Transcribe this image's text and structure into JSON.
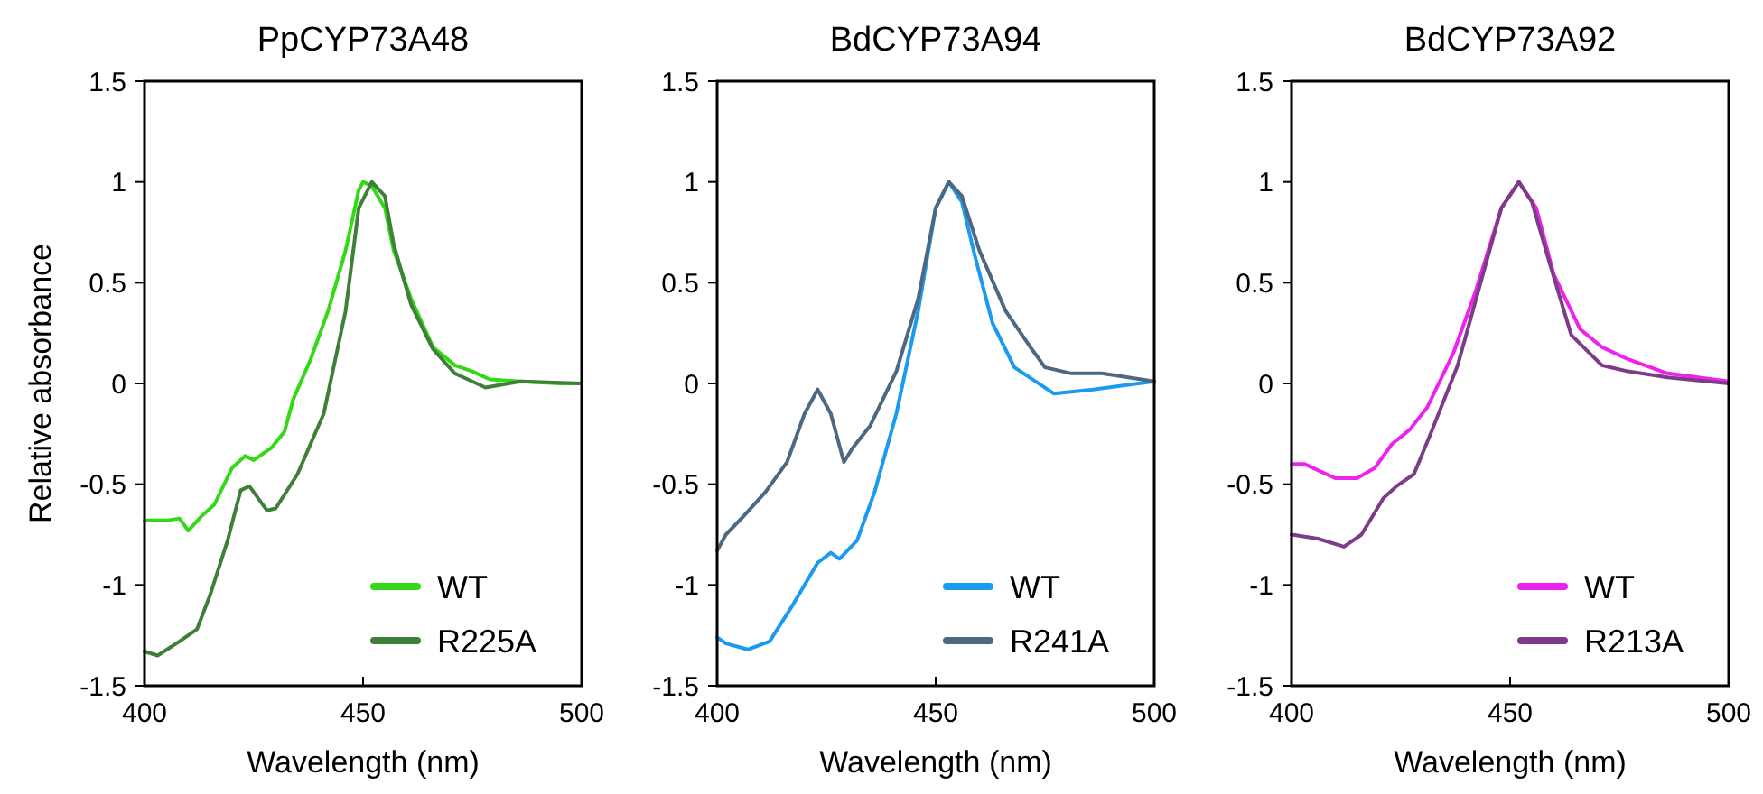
{
  "chart_data": [
    {
      "type": "line",
      "title": "PpCYP73A48",
      "xlabel": "Wavelength (nm)",
      "ylabel": "Relative absorbance",
      "xlim": [
        400,
        500
      ],
      "xticks": [
        400,
        450,
        500
      ],
      "ylim": [
        -1.5,
        1.5
      ],
      "yticks": [
        -1.5,
        -1,
        -0.5,
        0,
        0.5,
        1,
        1.5
      ],
      "legend": "bottom right",
      "grid": false,
      "marker": "none",
      "line_style": "solid",
      "series": [
        {
          "name": "WT",
          "color": "#33d916",
          "x": [
            400,
            405,
            408,
            410,
            413,
            416,
            420,
            423,
            425,
            429,
            432,
            434,
            438,
            442,
            446,
            449,
            450,
            452,
            455,
            457,
            461,
            466,
            471,
            475,
            479,
            486,
            495,
            500
          ],
          "values": [
            -0.68,
            -0.68,
            -0.67,
            -0.73,
            -0.66,
            -0.6,
            -0.42,
            -0.36,
            -0.38,
            -0.32,
            -0.24,
            -0.08,
            0.12,
            0.36,
            0.66,
            0.96,
            1,
            0.98,
            0.87,
            0.66,
            0.42,
            0.18,
            0.09,
            0.06,
            0.02,
            0.01,
            0,
            0
          ]
        },
        {
          "name": "R225A",
          "color": "#3f7f3a",
          "x": [
            400,
            403,
            408,
            412,
            415,
            419,
            422,
            424,
            428,
            430,
            435,
            441,
            446,
            449,
            452,
            455,
            457,
            461,
            466,
            471,
            478,
            486,
            500
          ],
          "values": [
            -1.33,
            -1.35,
            -1.28,
            -1.22,
            -1.05,
            -0.78,
            -0.53,
            -0.51,
            -0.63,
            -0.62,
            -0.45,
            -0.15,
            0.36,
            0.87,
            1,
            0.93,
            0.69,
            0.39,
            0.17,
            0.05,
            -0.02,
            0.01,
            0
          ]
        }
      ]
    },
    {
      "type": "line",
      "title": "BdCYP73A94",
      "xlabel": "Wavelength (nm)",
      "xlim": [
        400,
        500
      ],
      "xticks": [
        400,
        450,
        500
      ],
      "ylim": [
        -1.5,
        1.5
      ],
      "yticks": [
        -1.5,
        -1,
        -0.5,
        0,
        0.5,
        1,
        1.5
      ],
      "legend": "bottom right",
      "grid": false,
      "marker": "none",
      "line_style": "solid",
      "series": [
        {
          "name": "WT",
          "color": "#1a9bf0",
          "x": [
            400,
            402,
            407,
            412,
            417,
            423,
            426,
            428,
            432,
            436,
            441,
            446,
            450,
            453,
            456,
            459,
            463,
            468,
            477,
            486,
            500
          ],
          "values": [
            -1.26,
            -1.29,
            -1.32,
            -1.28,
            -1.11,
            -0.89,
            -0.84,
            -0.87,
            -0.78,
            -0.54,
            -0.15,
            0.36,
            0.87,
            1,
            0.9,
            0.63,
            0.3,
            0.08,
            -0.05,
            -0.03,
            0.01
          ]
        },
        {
          "name": "R241A",
          "color": "#4d6880",
          "x": [
            400,
            402,
            406,
            411,
            416,
            420,
            423,
            426,
            429,
            431,
            435,
            441,
            446,
            450,
            453,
            456,
            460,
            466,
            472,
            475,
            481,
            488,
            500
          ],
          "values": [
            -0.83,
            -0.75,
            -0.66,
            -0.54,
            -0.39,
            -0.15,
            -0.03,
            -0.15,
            -0.39,
            -0.32,
            -0.21,
            0.06,
            0.42,
            0.87,
            1,
            0.93,
            0.66,
            0.36,
            0.17,
            0.08,
            0.05,
            0.05,
            0.01
          ]
        }
      ]
    },
    {
      "type": "line",
      "title": "BdCYP73A92",
      "xlabel": "Wavelength (nm)",
      "xlim": [
        400,
        500
      ],
      "xticks": [
        400,
        450,
        500
      ],
      "ylim": [
        -1.5,
        1.5
      ],
      "yticks": [
        -1.5,
        -1,
        -0.5,
        0,
        0.5,
        1,
        1.5
      ],
      "legend": "bottom right",
      "grid": false,
      "marker": "none",
      "line_style": "solid",
      "series": [
        {
          "name": "WT",
          "color": "#ee22ee",
          "x": [
            400,
            403,
            410,
            415,
            419,
            423,
            427,
            431,
            437,
            442,
            448,
            452,
            456,
            460,
            466,
            471,
            477,
            486,
            500
          ],
          "values": [
            -0.4,
            -0.4,
            -0.47,
            -0.47,
            -0.42,
            -0.3,
            -0.23,
            -0.12,
            0.15,
            0.45,
            0.87,
            1,
            0.87,
            0.54,
            0.27,
            0.18,
            0.12,
            0.05,
            0.01
          ]
        },
        {
          "name": "R213A",
          "color": "#7d3c88",
          "x": [
            400,
            406,
            412,
            416,
            421,
            424,
            428,
            432,
            438,
            443,
            448,
            452,
            455,
            459,
            464,
            471,
            477,
            486,
            500
          ],
          "values": [
            -0.75,
            -0.77,
            -0.81,
            -0.75,
            -0.57,
            -0.51,
            -0.45,
            -0.24,
            0.09,
            0.48,
            0.87,
            1,
            0.9,
            0.6,
            0.24,
            0.09,
            0.06,
            0.03,
            0
          ]
        }
      ]
    }
  ]
}
